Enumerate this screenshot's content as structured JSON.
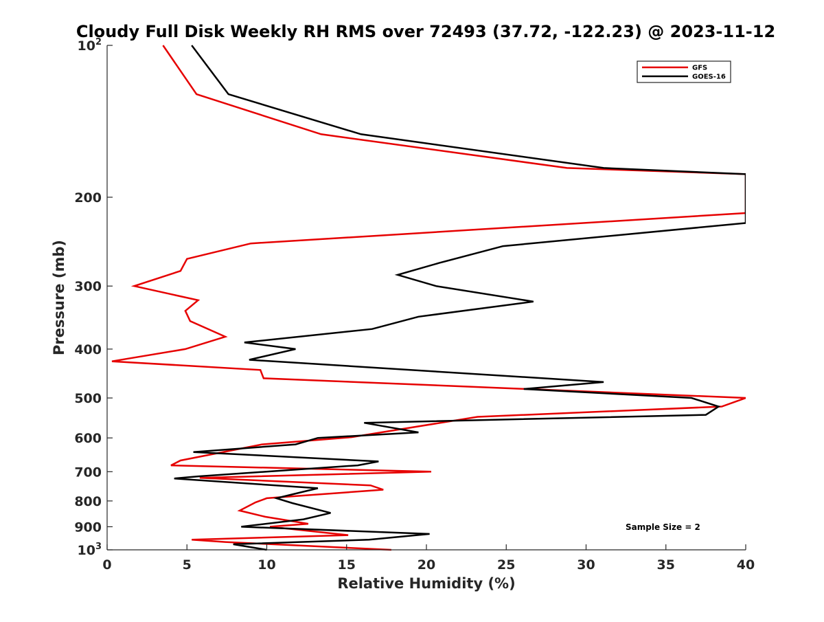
{
  "chart_data": {
    "type": "line",
    "title": "Cloudy Full Disk Weekly RH RMS over 72493 (37.72, -122.23) @ 2023-11-12",
    "xlabel": "Relative Humidity (%)",
    "ylabel": "Pressure (mb)",
    "xlim": [
      0,
      40
    ],
    "ylim": [
      100,
      1000
    ],
    "y_scale": "log",
    "y_reversed": true,
    "grid": false,
    "legend_position": "top-right",
    "x_ticks": [
      "0",
      "5",
      "10",
      "15",
      "20",
      "25",
      "30",
      "35",
      "40"
    ],
    "y_ticks": [
      {
        "value": 100,
        "base": "10",
        "exp": "2"
      },
      {
        "value": 200,
        "label": "200"
      },
      {
        "value": 300,
        "label": "300"
      },
      {
        "value": 400,
        "label": "400"
      },
      {
        "value": 500,
        "label": "500"
      },
      {
        "value": 600,
        "label": "600"
      },
      {
        "value": 700,
        "label": "700"
      },
      {
        "value": 800,
        "label": "800"
      },
      {
        "value": 900,
        "label": "900"
      },
      {
        "value": 1000,
        "base": "10",
        "exp": "3"
      }
    ],
    "annotation": "Sample Size = 2",
    "series": [
      {
        "name": "GFS",
        "color": "#e60000",
        "points": [
          [
            3.5,
            100
          ],
          [
            5.6,
            125
          ],
          [
            13.4,
            150
          ],
          [
            28.8,
            175
          ],
          [
            40.0,
            180
          ],
          [
            40.0,
            215
          ],
          [
            9.0,
            247
          ],
          [
            5.0,
            265
          ],
          [
            4.6,
            280
          ],
          [
            1.7,
            300
          ],
          [
            5.7,
            320
          ],
          [
            4.9,
            336
          ],
          [
            5.2,
            352
          ],
          [
            7.4,
            378
          ],
          [
            4.9,
            400
          ],
          [
            0.3,
            423
          ],
          [
            9.6,
            440
          ],
          [
            9.8,
            457
          ],
          [
            40.0,
            500
          ],
          [
            38.5,
            520
          ],
          [
            23.2,
            545
          ],
          [
            15.3,
            598
          ],
          [
            9.7,
            618
          ],
          [
            4.6,
            665
          ],
          [
            4.0,
            680
          ],
          [
            20.3,
            700
          ],
          [
            5.8,
            720
          ],
          [
            16.5,
            745
          ],
          [
            17.3,
            760
          ],
          [
            10.0,
            790
          ],
          [
            9.3,
            805
          ],
          [
            8.3,
            836
          ],
          [
            9.9,
            860
          ],
          [
            12.6,
            888
          ],
          [
            10.2,
            900
          ],
          [
            15.1,
            935
          ],
          [
            5.3,
            955
          ],
          [
            7.4,
            965
          ],
          [
            17.8,
            1000
          ]
        ]
      },
      {
        "name": "GOES-16",
        "color": "#000000",
        "points": [
          [
            5.3,
            100
          ],
          [
            7.6,
            125
          ],
          [
            15.9,
            150
          ],
          [
            31.1,
            175
          ],
          [
            40.0,
            180
          ],
          [
            40.0,
            225
          ],
          [
            24.8,
            250
          ],
          [
            20.8,
            270
          ],
          [
            18.2,
            285
          ],
          [
            20.6,
            300
          ],
          [
            26.7,
            322
          ],
          [
            19.5,
            345
          ],
          [
            16.6,
            365
          ],
          [
            8.6,
            388
          ],
          [
            11.8,
            400
          ],
          [
            8.9,
            420
          ],
          [
            31.1,
            465
          ],
          [
            26.1,
            480
          ],
          [
            36.6,
            500
          ],
          [
            38.3,
            520
          ],
          [
            37.5,
            540
          ],
          [
            16.1,
            560
          ],
          [
            19.5,
            585
          ],
          [
            13.2,
            600
          ],
          [
            11.8,
            618
          ],
          [
            5.4,
            640
          ],
          [
            17.0,
            668
          ],
          [
            15.7,
            680
          ],
          [
            5.7,
            715
          ],
          [
            4.2,
            722
          ],
          [
            13.2,
            755
          ],
          [
            10.6,
            790
          ],
          [
            11.6,
            808
          ],
          [
            14.0,
            845
          ],
          [
            12.3,
            870
          ],
          [
            8.4,
            900
          ],
          [
            20.2,
            930
          ],
          [
            16.4,
            955
          ],
          [
            7.9,
            975
          ],
          [
            10.0,
            1000
          ]
        ]
      }
    ]
  }
}
